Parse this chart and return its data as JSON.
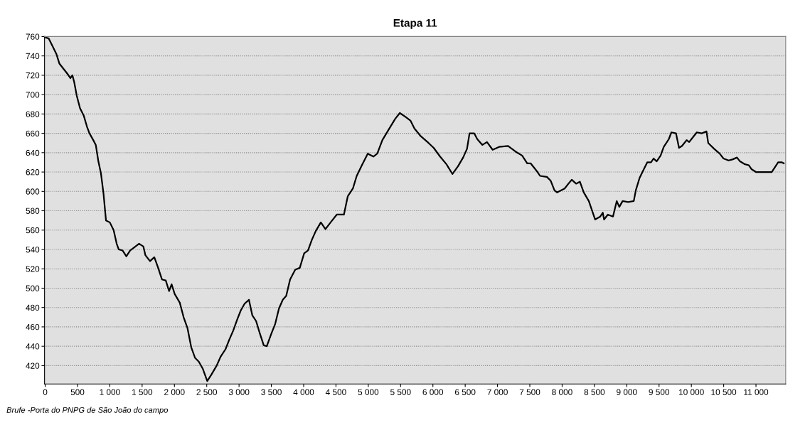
{
  "chart_data": {
    "type": "line",
    "title": "Etapa 11",
    "annotations": [
      "Brufe -Porta do PNPG de São João do campo"
    ],
    "x": [
      8,
      55,
      114,
      173,
      220,
      291,
      350,
      390,
      421,
      449,
      488,
      539,
      598,
      646,
      685,
      744,
      783,
      823,
      862,
      902,
      941,
      1000,
      1059,
      1106,
      1138,
      1197,
      1256,
      1315,
      1374,
      1453,
      1520,
      1551,
      1622,
      1689,
      1748,
      1807,
      1866,
      1917,
      1957,
      2004,
      2083,
      2142,
      2201,
      2260,
      2319,
      2378,
      2437,
      2508,
      2575,
      2654,
      2713,
      2791,
      2850,
      2909,
      2968,
      3027,
      3086,
      3153,
      3205,
      3264,
      3323,
      3382,
      3429,
      3500,
      3559,
      3618,
      3677,
      3730,
      3790,
      3869,
      3940,
      4008,
      4067,
      4127,
      4187,
      4266,
      4337,
      4417,
      4512,
      4623,
      4683,
      4762,
      4821,
      4901,
      4992,
      5079,
      5139,
      5218,
      5317,
      5417,
      5488,
      5575,
      5655,
      5714,
      5813,
      5933,
      6012,
      6111,
      6210,
      6302,
      6389,
      6468,
      6528,
      6567,
      6639,
      6687,
      6766,
      6837,
      6925,
      7024,
      7163,
      7282,
      7381,
      7460,
      7512,
      7619,
      7659,
      7764,
      7823,
      7882,
      7921,
      7980,
      8039,
      8098,
      8149,
      8216,
      8275,
      8334,
      8413,
      8511,
      8590,
      8629,
      8649,
      8708,
      8787,
      8845,
      8885,
      8936,
      9022,
      9109,
      9140,
      9199,
      9258,
      9317,
      9376,
      9416,
      9463,
      9524,
      9573,
      9651,
      9691,
      9762,
      9809,
      9856,
      9927,
      9966,
      10025,
      10084,
      10163,
      10234,
      10261,
      10352,
      10438,
      10497,
      10576,
      10635,
      10706,
      10753,
      10831,
      10890,
      10930,
      11000,
      11244,
      11343,
      11402,
      11430
    ],
    "series": [
      {
        "color": "#000000",
        "values": [
          759,
          758,
          750,
          742,
          732,
          726,
          721,
          717,
          720,
          713,
          699,
          686,
          678,
          667,
          660,
          653,
          648,
          631,
          619,
          598,
          570,
          568,
          560,
          546,
          540,
          539,
          533,
          539,
          542,
          546,
          543,
          534,
          528,
          532,
          521,
          509,
          508,
          497,
          504,
          494,
          485,
          470,
          459,
          439,
          428,
          424,
          417,
          404,
          411,
          420,
          429,
          437,
          447,
          456,
          467,
          477,
          484,
          488,
          472,
          466,
          453,
          441,
          440,
          453,
          463,
          479,
          488,
          492,
          509,
          519,
          521,
          536,
          539,
          550,
          559,
          568,
          561,
          568,
          576,
          576,
          595,
          603,
          616,
          627,
          639,
          636,
          639,
          653,
          664,
          675,
          681,
          677,
          673,
          665,
          657,
          650,
          645,
          636,
          628,
          618,
          626,
          635,
          644,
          660,
          660,
          654,
          648,
          651,
          643,
          646,
          647,
          641,
          637,
          629,
          629,
          620,
          616,
          615,
          611,
          601,
          599,
          601,
          603,
          608,
          612,
          608,
          610,
          599,
          590,
          571,
          574,
          578,
          571,
          576,
          574,
          590,
          584,
          590,
          589,
          590,
          601,
          614,
          622,
          630,
          630,
          634,
          631,
          637,
          646,
          654,
          661,
          660,
          645,
          647,
          653,
          651,
          656,
          661,
          660,
          662,
          650,
          644,
          639,
          634,
          632,
          633,
          635,
          631,
          628,
          627,
          623,
          620,
          620,
          630,
          630,
          629
        ]
      }
    ],
    "xlim": [
      -10,
      11460
    ],
    "xticks": [
      {
        "value": 0,
        "label": "0"
      },
      {
        "value": 500,
        "label": "500"
      },
      {
        "value": 1000,
        "label": "1 000"
      },
      {
        "value": 1500,
        "label": "1 500"
      },
      {
        "value": 2000,
        "label": "2 000"
      },
      {
        "value": 2500,
        "label": "2 500"
      },
      {
        "value": 3000,
        "label": "3 000"
      },
      {
        "value": 3500,
        "label": "3 500"
      },
      {
        "value": 4000,
        "label": "4 000"
      },
      {
        "value": 4500,
        "label": "4 500"
      },
      {
        "value": 5000,
        "label": "5 000"
      },
      {
        "value": 5500,
        "label": "5 500"
      },
      {
        "value": 6000,
        "label": "6 000"
      },
      {
        "value": 6500,
        "label": "6 500"
      },
      {
        "value": 7000,
        "label": "7 000"
      },
      {
        "value": 7500,
        "label": "7 500"
      },
      {
        "value": 8000,
        "label": "8 000"
      },
      {
        "value": 8500,
        "label": "8 500"
      },
      {
        "value": 9000,
        "label": "9 000"
      },
      {
        "value": 9500,
        "label": "9 500"
      },
      {
        "value": 10000,
        "label": "10 000"
      },
      {
        "value": 10500,
        "label": "10 500"
      },
      {
        "value": 11000,
        "label": "11 000"
      }
    ],
    "ylim": [
      401,
      760
    ],
    "yticks": [
      420,
      440,
      460,
      480,
      500,
      520,
      540,
      560,
      580,
      600,
      620,
      640,
      660,
      680,
      700,
      720,
      740,
      760
    ],
    "grid": "y",
    "marker": "none",
    "line_style": "solid"
  }
}
